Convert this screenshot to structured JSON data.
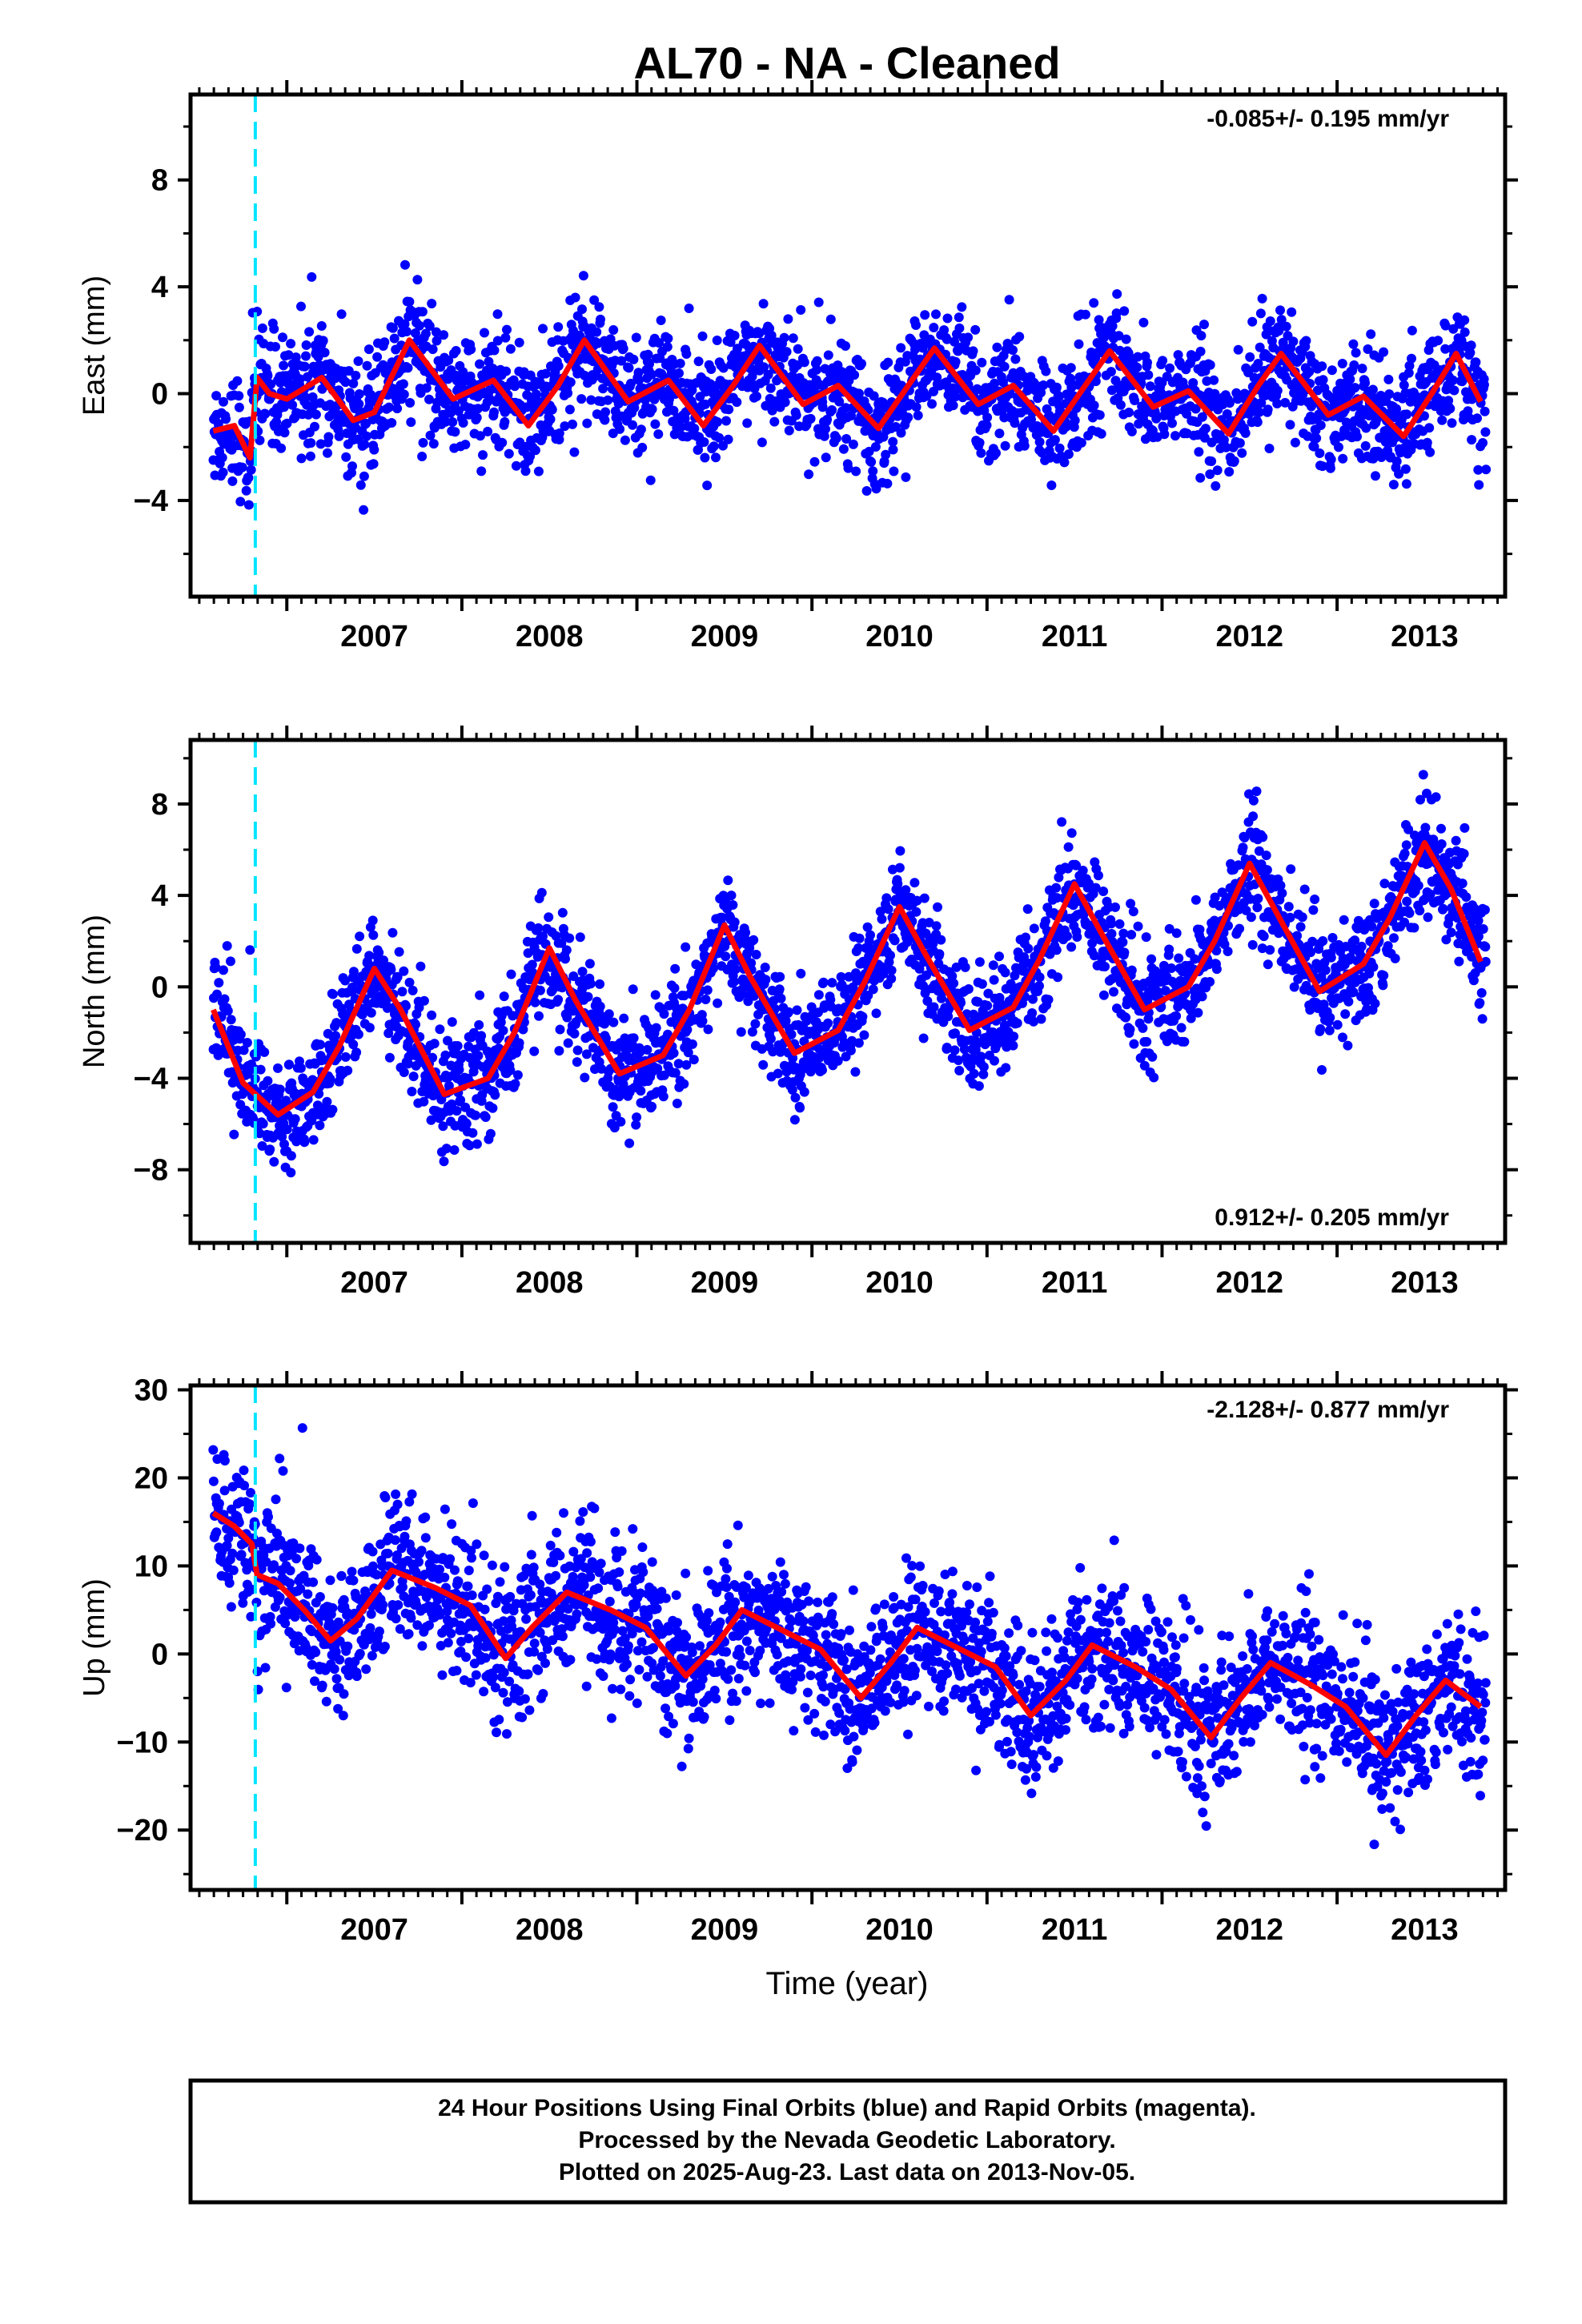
{
  "chart_data": {
    "title": "AL70  - NA - Cleaned",
    "xlabel": "Time (year)",
    "x_ticks": [
      "2007",
      "2008",
      "2009",
      "2010",
      "2011",
      "2012",
      "2013"
    ],
    "xlim": [
      2006.45,
      2013.96
    ],
    "event_line": {
      "x": 2006.82,
      "color": "#00e5ff",
      "style": "dashed"
    },
    "colors": {
      "final_orbits": "#0000ff",
      "model": "#ff0000"
    },
    "panels": [
      {
        "type": "scatter",
        "name": "east",
        "ylabel": "East (mm)",
        "ylim": [
          -7.6,
          11.2
        ],
        "y_ticks": [
          -4,
          0,
          4,
          8
        ],
        "rate": "-0.085+/- 0.195 mm/yr",
        "rate_position": "top-right",
        "model": [
          [
            2006.58,
            -1.4
          ],
          [
            2006.7,
            -1.2
          ],
          [
            2006.79,
            -2.4
          ],
          [
            2006.83,
            0.6
          ],
          [
            2006.9,
            0.0
          ],
          [
            2007.0,
            -0.2
          ],
          [
            2007.2,
            0.6
          ],
          [
            2007.38,
            -1.0
          ],
          [
            2007.5,
            -0.7
          ],
          [
            2007.7,
            2.0
          ],
          [
            2007.95,
            -0.2
          ],
          [
            2008.18,
            0.5
          ],
          [
            2008.38,
            -1.2
          ],
          [
            2008.55,
            0.3
          ],
          [
            2008.7,
            2.0
          ],
          [
            2008.95,
            -0.3
          ],
          [
            2009.18,
            0.5
          ],
          [
            2009.38,
            -1.2
          ],
          [
            2009.55,
            0.3
          ],
          [
            2009.7,
            1.8
          ],
          [
            2009.95,
            -0.4
          ],
          [
            2010.15,
            0.3
          ],
          [
            2010.38,
            -1.3
          ],
          [
            2010.55,
            0.3
          ],
          [
            2010.7,
            1.7
          ],
          [
            2010.95,
            -0.4
          ],
          [
            2011.15,
            0.3
          ],
          [
            2011.38,
            -1.4
          ],
          [
            2011.55,
            0.2
          ],
          [
            2011.7,
            1.6
          ],
          [
            2011.95,
            -0.5
          ],
          [
            2012.15,
            0.1
          ],
          [
            2012.38,
            -1.5
          ],
          [
            2012.55,
            0.3
          ],
          [
            2012.68,
            1.5
          ],
          [
            2012.95,
            -0.8
          ],
          [
            2013.15,
            -0.1
          ],
          [
            2013.38,
            -1.6
          ],
          [
            2013.55,
            0.1
          ],
          [
            2013.68,
            1.5
          ],
          [
            2013.82,
            -0.3
          ]
        ]
      },
      {
        "type": "scatter",
        "name": "north",
        "ylabel": "North (mm)",
        "ylim": [
          -11.2,
          10.8
        ],
        "y_ticks": [
          -8,
          -4,
          0,
          4,
          8
        ],
        "rate": "0.912+/- 0.205 mm/yr",
        "rate_position": "bottom-right",
        "model": [
          [
            2006.58,
            -1.0
          ],
          [
            2006.75,
            -4.2
          ],
          [
            2006.95,
            -5.6
          ],
          [
            2007.15,
            -4.6
          ],
          [
            2007.3,
            -2.6
          ],
          [
            2007.5,
            0.8
          ],
          [
            2007.65,
            -1.0
          ],
          [
            2007.9,
            -4.7
          ],
          [
            2008.15,
            -4.0
          ],
          [
            2008.3,
            -2.0
          ],
          [
            2008.5,
            1.7
          ],
          [
            2008.65,
            -0.6
          ],
          [
            2008.9,
            -3.8
          ],
          [
            2009.15,
            -3.0
          ],
          [
            2009.3,
            -1.0
          ],
          [
            2009.5,
            2.7
          ],
          [
            2009.65,
            0.4
          ],
          [
            2009.9,
            -2.9
          ],
          [
            2010.15,
            -1.9
          ],
          [
            2010.3,
            0.2
          ],
          [
            2010.5,
            3.5
          ],
          [
            2010.65,
            1.4
          ],
          [
            2010.9,
            -1.9
          ],
          [
            2011.15,
            -0.9
          ],
          [
            2011.3,
            1.2
          ],
          [
            2011.5,
            4.5
          ],
          [
            2011.65,
            2.4
          ],
          [
            2011.9,
            -1.0
          ],
          [
            2012.15,
            0.0
          ],
          [
            2012.3,
            2.0
          ],
          [
            2012.5,
            5.4
          ],
          [
            2012.65,
            3.3
          ],
          [
            2012.9,
            -0.2
          ],
          [
            2013.15,
            1.0
          ],
          [
            2013.3,
            3.0
          ],
          [
            2013.5,
            6.3
          ],
          [
            2013.65,
            4.3
          ],
          [
            2013.82,
            1.1
          ]
        ]
      },
      {
        "type": "scatter",
        "name": "up",
        "ylabel": "Up (mm)",
        "ylim": [
          -26.8,
          30.5
        ],
        "y_ticks": [
          -20,
          -10,
          0,
          10,
          20,
          30
        ],
        "rate": "-2.128+/- 0.877 mm/yr",
        "rate_position": "top-right",
        "model": [
          [
            2006.58,
            16.0
          ],
          [
            2006.7,
            14.5
          ],
          [
            2006.8,
            12.5
          ],
          [
            2006.83,
            9.0
          ],
          [
            2006.95,
            8.0
          ],
          [
            2007.1,
            5.0
          ],
          [
            2007.25,
            1.5
          ],
          [
            2007.4,
            4.0
          ],
          [
            2007.6,
            9.5
          ],
          [
            2007.85,
            7.5
          ],
          [
            2008.05,
            5.5
          ],
          [
            2008.25,
            -0.5
          ],
          [
            2008.4,
            3.0
          ],
          [
            2008.6,
            7.0
          ],
          [
            2008.85,
            5.0
          ],
          [
            2009.05,
            3.0
          ],
          [
            2009.28,
            -2.5
          ],
          [
            2009.45,
            1.0
          ],
          [
            2009.6,
            5.0
          ],
          [
            2009.85,
            2.5
          ],
          [
            2010.05,
            0.5
          ],
          [
            2010.28,
            -5.0
          ],
          [
            2010.45,
            -1.0
          ],
          [
            2010.6,
            3.0
          ],
          [
            2010.85,
            0.5
          ],
          [
            2011.05,
            -1.5
          ],
          [
            2011.25,
            -7.0
          ],
          [
            2011.45,
            -3.0
          ],
          [
            2011.6,
            1.0
          ],
          [
            2011.85,
            -1.5
          ],
          [
            2012.05,
            -4.0
          ],
          [
            2012.28,
            -9.5
          ],
          [
            2012.45,
            -5.0
          ],
          [
            2012.62,
            -1.0
          ],
          [
            2012.85,
            -3.5
          ],
          [
            2013.05,
            -6.0
          ],
          [
            2013.28,
            -11.5
          ],
          [
            2013.45,
            -7.0
          ],
          [
            2013.62,
            -3.0
          ],
          [
            2013.82,
            -6.0
          ]
        ]
      }
    ]
  },
  "footer": {
    "line1": "24 Hour Positions Using Final Orbits (blue) and Rapid Orbits (magenta).",
    "line2": "Processed by the Nevada Geodetic Laboratory.",
    "line3": "Plotted on 2025-Aug-23. Last data on 2013-Nov-05."
  }
}
